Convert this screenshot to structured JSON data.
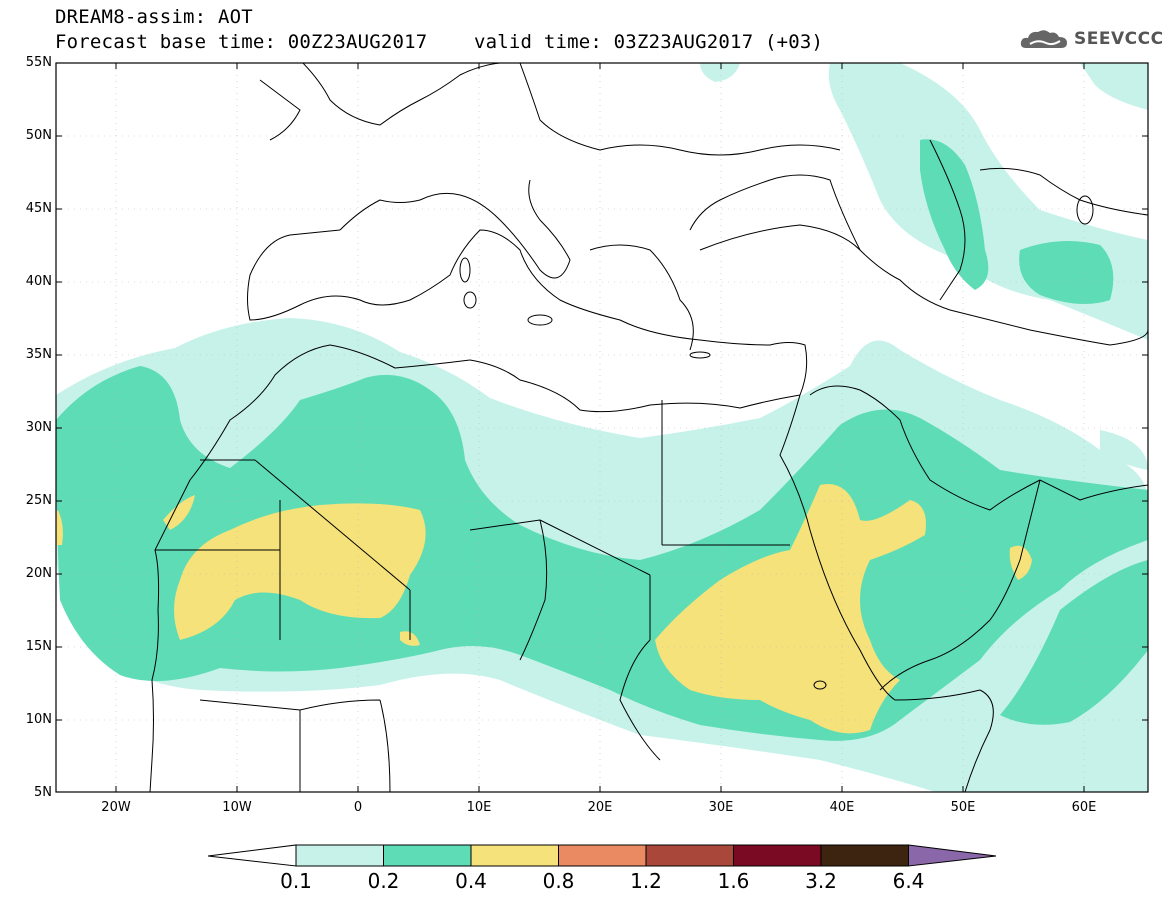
{
  "header": {
    "title_line1": "DREAM8-assim: AOT",
    "title_line2": "Forecast base time: 00Z23AUG2017    valid time: 03Z23AUG2017 (+03)"
  },
  "logo": {
    "text": "SEEVCCC",
    "icon": "cloud-logo-icon"
  },
  "map": {
    "lat_labels": [
      "55N",
      "50N",
      "45N",
      "40N",
      "35N",
      "30N",
      "25N",
      "20N",
      "15N",
      "10N",
      "5N"
    ],
    "lon_labels": [
      "20W",
      "10W",
      "0",
      "10E",
      "20E",
      "30E",
      "40E",
      "50E",
      "60E"
    ]
  },
  "colorbar": {
    "levels": [
      "0.1",
      "0.2",
      "0.4",
      "0.8",
      "1.2",
      "1.6",
      "3.2",
      "6.4"
    ],
    "colors": [
      "#ffffff",
      "#c6f2ea",
      "#5ddcb6",
      "#f5e27a",
      "#e98a62",
      "#a9473a",
      "#7a0a24",
      "#3d2410",
      "#8a67a8"
    ]
  },
  "colors": {
    "aot_01": "#c6f2ea",
    "aot_02": "#5ddcb6",
    "aot_04": "#f5e27a",
    "border": "#000000"
  }
}
